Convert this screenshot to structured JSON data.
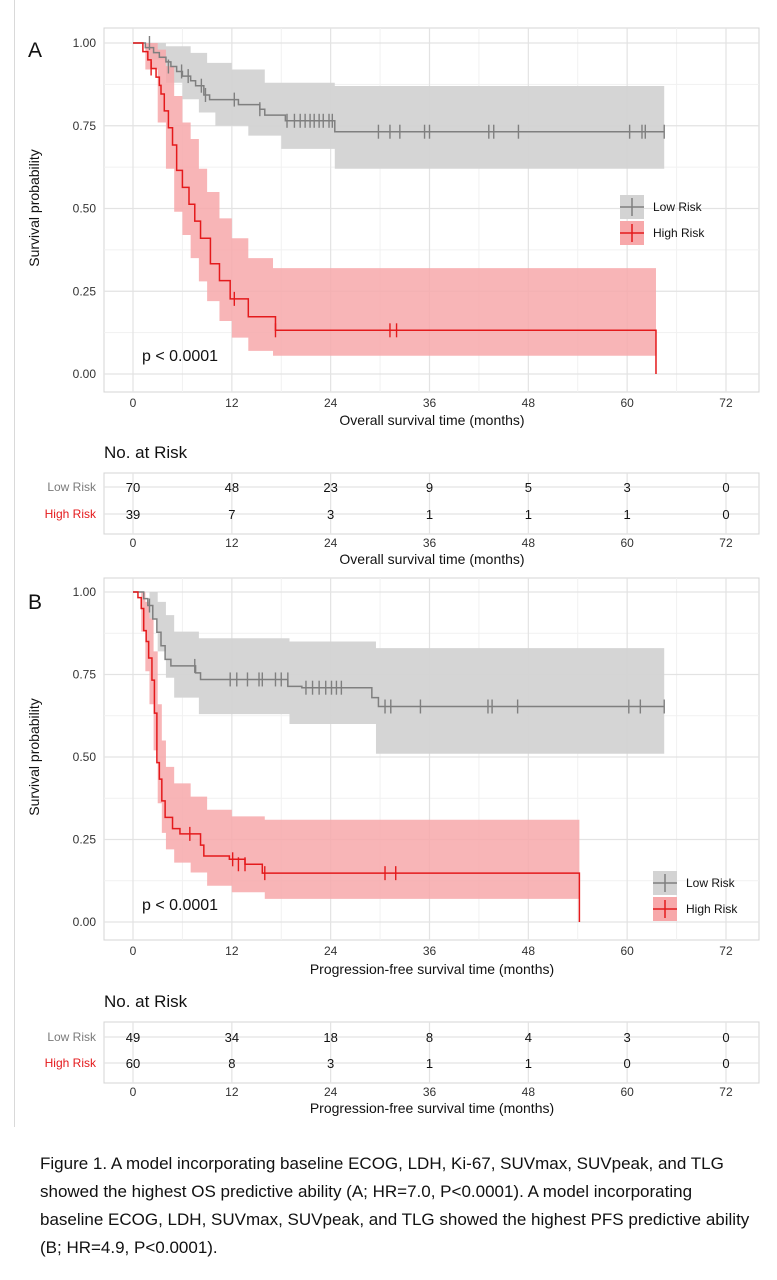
{
  "panels": [
    {
      "label": "A",
      "xlabel": "Overall survival time (months)",
      "ylabel": "Survival probability",
      "pvalue": "p < 0.0001",
      "xticks": [
        0,
        12,
        24,
        36,
        48,
        60,
        72
      ],
      "yticks": [
        "0.00",
        "0.25",
        "0.50",
        "0.75",
        "1.00"
      ],
      "risk_title": "No. at Risk",
      "legend": [
        "Low Risk",
        "High Risk"
      ],
      "risk_rows": [
        {
          "label": "Low Risk",
          "values": [
            70,
            48,
            23,
            9,
            5,
            3,
            0
          ]
        },
        {
          "label": "High Risk",
          "values": [
            39,
            7,
            3,
            1,
            1,
            1,
            0
          ]
        }
      ]
    },
    {
      "label": "B",
      "xlabel": "Progression-free survival time (months)",
      "ylabel": "Survival probability",
      "pvalue": "p < 0.0001",
      "xticks": [
        0,
        12,
        24,
        36,
        48,
        60,
        72
      ],
      "yticks": [
        "0.00",
        "0.25",
        "0.50",
        "0.75",
        "1.00"
      ],
      "risk_title": "No. at Risk",
      "legend": [
        "Low Risk",
        "High Risk"
      ],
      "risk_rows": [
        {
          "label": "Low Risk",
          "values": [
            49,
            34,
            18,
            8,
            4,
            3,
            0
          ]
        },
        {
          "label": "High Risk",
          "values": [
            60,
            8,
            3,
            1,
            1,
            0,
            0
          ]
        }
      ]
    }
  ],
  "colors": {
    "low_line": "#7f7f7f",
    "low_band": "#d3d3d3",
    "high_line": "#e41a1c",
    "high_band": "#f7a8aa",
    "high_label": "#e41a1c",
    "grid": "#e3e3e3",
    "frame": "#d4d4d4"
  },
  "chart_data": [
    {
      "type": "line",
      "title": "",
      "xlabel": "Overall survival time (months)",
      "ylabel": "Survival probability",
      "xlim": [
        0,
        72
      ],
      "ylim": [
        0,
        1
      ],
      "grid": true,
      "legend_position": "right",
      "series": [
        {
          "name": "Low Risk",
          "steps": [
            [
              0,
              1.0
            ],
            [
              1.5,
              0.986
            ],
            [
              2.5,
              0.971
            ],
            [
              3.2,
              0.957
            ],
            [
              4.0,
              0.943
            ],
            [
              4.6,
              0.929
            ],
            [
              5.3,
              0.914
            ],
            [
              6.0,
              0.9
            ],
            [
              7.0,
              0.886
            ],
            [
              7.6,
              0.871
            ],
            [
              8.6,
              0.843
            ],
            [
              9.3,
              0.829
            ],
            [
              12.8,
              0.814
            ],
            [
              15.4,
              0.8
            ],
            [
              16.0,
              0.782
            ],
            [
              18.5,
              0.765
            ],
            [
              24.5,
              0.732
            ]
          ],
          "end": 64.5,
          "upper": [
            [
              0,
              1.0
            ],
            [
              2.0,
              1.0
            ],
            [
              4.0,
              0.99
            ],
            [
              7.0,
              0.97
            ],
            [
              9.0,
              0.94
            ],
            [
              12.0,
              0.92
            ],
            [
              16.0,
              0.88
            ],
            [
              24.5,
              0.87
            ],
            [
              64.5,
              0.87
            ]
          ],
          "lower": [
            [
              0,
              1.0
            ],
            [
              2.0,
              0.95
            ],
            [
              4.0,
              0.88
            ],
            [
              6.0,
              0.83
            ],
            [
              8.0,
              0.79
            ],
            [
              10.0,
              0.75
            ],
            [
              14.0,
              0.72
            ],
            [
              18.0,
              0.68
            ],
            [
              24.5,
              0.62
            ],
            [
              64.5,
              0.62
            ]
          ],
          "censor": [
            [
              2.0,
              1.0
            ],
            [
              4.3,
              0.929
            ],
            [
              5.9,
              0.914
            ],
            [
              6.7,
              0.9
            ],
            [
              8.3,
              0.871
            ],
            [
              8.8,
              0.843
            ],
            [
              12.3,
              0.829
            ],
            [
              15.4,
              0.8
            ],
            [
              18.7,
              0.765
            ],
            [
              19.6,
              0.765
            ],
            [
              20.3,
              0.765
            ],
            [
              20.9,
              0.765
            ],
            [
              21.5,
              0.765
            ],
            [
              22.0,
              0.765
            ],
            [
              22.6,
              0.765
            ],
            [
              23.1,
              0.765
            ],
            [
              23.8,
              0.765
            ],
            [
              24.2,
              0.765
            ],
            [
              29.8,
              0.732
            ],
            [
              31.2,
              0.732
            ],
            [
              32.4,
              0.732
            ],
            [
              35.4,
              0.732
            ],
            [
              36.0,
              0.732
            ],
            [
              43.2,
              0.732
            ],
            [
              43.8,
              0.732
            ],
            [
              46.8,
              0.732
            ],
            [
              60.3,
              0.732
            ],
            [
              61.8,
              0.732
            ],
            [
              62.2,
              0.732
            ],
            [
              64.5,
              0.732
            ]
          ]
        },
        {
          "name": "High Risk",
          "steps": [
            [
              0,
              1.0
            ],
            [
              1.2,
              0.974
            ],
            [
              1.8,
              0.949
            ],
            [
              2.2,
              0.923
            ],
            [
              2.8,
              0.897
            ],
            [
              3.2,
              0.872
            ],
            [
              3.4,
              0.846
            ],
            [
              3.8,
              0.795
            ],
            [
              4.3,
              0.744
            ],
            [
              4.8,
              0.692
            ],
            [
              5.3,
              0.615
            ],
            [
              6.0,
              0.564
            ],
            [
              6.8,
              0.513
            ],
            [
              7.5,
              0.462
            ],
            [
              8.2,
              0.41
            ],
            [
              9.4,
              0.333
            ],
            [
              10.5,
              0.282
            ],
            [
              11.8,
              0.227
            ],
            [
              14.0,
              0.173
            ],
            [
              17.3,
              0.132
            ]
          ],
          "end": 63.5,
          "drop": 0.0,
          "upper": [
            [
              0,
              1.0
            ],
            [
              1.5,
              1.0
            ],
            [
              3.0,
              0.98
            ],
            [
              4.0,
              0.93
            ],
            [
              5.0,
              0.84
            ],
            [
              6.0,
              0.76
            ],
            [
              7.0,
              0.71
            ],
            [
              8.0,
              0.62
            ],
            [
              9.0,
              0.55
            ],
            [
              10.5,
              0.47
            ],
            [
              12.0,
              0.41
            ],
            [
              14.0,
              0.35
            ],
            [
              17.0,
              0.32
            ],
            [
              63.5,
              0.32
            ]
          ],
          "lower": [
            [
              0,
              1.0
            ],
            [
              1.5,
              0.92
            ],
            [
              3.0,
              0.76
            ],
            [
              4.0,
              0.62
            ],
            [
              5.0,
              0.49
            ],
            [
              6.0,
              0.42
            ],
            [
              7.0,
              0.35
            ],
            [
              8.0,
              0.28
            ],
            [
              9.0,
              0.22
            ],
            [
              10.5,
              0.16
            ],
            [
              12.0,
              0.11
            ],
            [
              14.0,
              0.07
            ],
            [
              17.0,
              0.055
            ],
            [
              63.5,
              0.055
            ]
          ],
          "censor": [
            [
              2.2,
              0.923
            ],
            [
              12.3,
              0.227
            ],
            [
              17.3,
              0.132
            ],
            [
              31.2,
              0.132
            ],
            [
              32.0,
              0.132
            ]
          ]
        }
      ]
    },
    {
      "type": "line",
      "title": "",
      "xlabel": "Progression-free survival time (months)",
      "ylabel": "Survival probability",
      "xlim": [
        0,
        72
      ],
      "ylim": [
        0,
        1
      ],
      "grid": true,
      "legend_position": "bottom-right",
      "series": [
        {
          "name": "Low Risk",
          "steps": [
            [
              0,
              1.0
            ],
            [
              1.3,
              0.98
            ],
            [
              1.8,
              0.959
            ],
            [
              2.4,
              0.918
            ],
            [
              2.9,
              0.878
            ],
            [
              3.4,
              0.837
            ],
            [
              3.9,
              0.796
            ],
            [
              4.6,
              0.776
            ],
            [
              7.6,
              0.755
            ],
            [
              8.2,
              0.735
            ],
            [
              18.8,
              0.714
            ],
            [
              20.5,
              0.71
            ],
            [
              29.0,
              0.68
            ],
            [
              29.8,
              0.653
            ]
          ],
          "end": 64.5,
          "upper": [
            [
              0,
              1.0
            ],
            [
              2.0,
              1.0
            ],
            [
              3.0,
              0.97
            ],
            [
              4.0,
              0.93
            ],
            [
              5.0,
              0.88
            ],
            [
              8.0,
              0.86
            ],
            [
              19.0,
              0.85
            ],
            [
              29.5,
              0.83
            ],
            [
              64.5,
              0.83
            ]
          ],
          "lower": [
            [
              0,
              1.0
            ],
            [
              2.0,
              0.92
            ],
            [
              3.0,
              0.82
            ],
            [
              4.0,
              0.74
            ],
            [
              5.0,
              0.68
            ],
            [
              8.0,
              0.63
            ],
            [
              19.0,
              0.6
            ],
            [
              29.5,
              0.51
            ],
            [
              64.5,
              0.51
            ]
          ],
          "censor": [
            [
              2.0,
              0.959
            ],
            [
              7.5,
              0.776
            ],
            [
              11.8,
              0.735
            ],
            [
              12.6,
              0.735
            ],
            [
              13.9,
              0.735
            ],
            [
              15.3,
              0.735
            ],
            [
              15.7,
              0.735
            ],
            [
              17.3,
              0.735
            ],
            [
              18.0,
              0.735
            ],
            [
              18.8,
              0.735
            ],
            [
              21.0,
              0.71
            ],
            [
              21.8,
              0.71
            ],
            [
              22.6,
              0.71
            ],
            [
              23.4,
              0.71
            ],
            [
              24.1,
              0.71
            ],
            [
              24.7,
              0.71
            ],
            [
              25.3,
              0.71
            ],
            [
              30.6,
              0.653
            ],
            [
              31.3,
              0.653
            ],
            [
              34.9,
              0.653
            ],
            [
              43.1,
              0.653
            ],
            [
              43.6,
              0.653
            ],
            [
              46.7,
              0.653
            ],
            [
              60.2,
              0.653
            ],
            [
              61.6,
              0.653
            ],
            [
              64.5,
              0.653
            ]
          ]
        },
        {
          "name": "High Risk",
          "steps": [
            [
              0,
              1.0
            ],
            [
              0.6,
              0.983
            ],
            [
              1.0,
              0.95
            ],
            [
              1.3,
              0.883
            ],
            [
              1.6,
              0.85
            ],
            [
              1.9,
              0.8
            ],
            [
              2.3,
              0.733
            ],
            [
              2.6,
              0.633
            ],
            [
              2.9,
              0.483
            ],
            [
              3.2,
              0.433
            ],
            [
              3.5,
              0.367
            ],
            [
              3.9,
              0.317
            ],
            [
              4.8,
              0.283
            ],
            [
              5.7,
              0.267
            ],
            [
              8.2,
              0.233
            ],
            [
              8.6,
              0.2
            ],
            [
              11.7,
              0.19
            ],
            [
              13.6,
              0.175
            ],
            [
              15.7,
              0.148
            ]
          ],
          "end": 54.2,
          "drop": 0.0,
          "upper": [
            [
              0,
              1.0
            ],
            [
              1.0,
              1.0
            ],
            [
              1.5,
              0.97
            ],
            [
              2.0,
              0.92
            ],
            [
              2.5,
              0.82
            ],
            [
              3.0,
              0.66
            ],
            [
              3.5,
              0.55
            ],
            [
              4.0,
              0.47
            ],
            [
              5.0,
              0.42
            ],
            [
              7.0,
              0.38
            ],
            [
              9.0,
              0.34
            ],
            [
              12.0,
              0.32
            ],
            [
              16.0,
              0.31
            ],
            [
              54.2,
              0.31
            ]
          ],
          "lower": [
            [
              0,
              1.0
            ],
            [
              1.0,
              0.88
            ],
            [
              1.5,
              0.76
            ],
            [
              2.0,
              0.66
            ],
            [
              2.5,
              0.52
            ],
            [
              3.0,
              0.36
            ],
            [
              3.5,
              0.27
            ],
            [
              4.0,
              0.22
            ],
            [
              5.0,
              0.18
            ],
            [
              7.0,
              0.15
            ],
            [
              9.0,
              0.11
            ],
            [
              12.0,
              0.09
            ],
            [
              16.0,
              0.07
            ],
            [
              54.2,
              0.07
            ]
          ],
          "censor": [
            [
              6.9,
              0.267
            ],
            [
              12.1,
              0.19
            ],
            [
              12.8,
              0.175
            ],
            [
              13.6,
              0.175
            ],
            [
              16.0,
              0.148
            ],
            [
              30.6,
              0.148
            ],
            [
              31.9,
              0.148
            ]
          ]
        }
      ]
    }
  ],
  "caption": "Figure 1. A model incorporating baseline ECOG, LDH, Ki-67, SUVmax, SUVpeak, and TLG showed the highest OS predictive ability (A; HR=7.0, P<0.0001). A model incorporating baseline ECOG, LDH, SUVmax, SUVpeak, and TLG showed the highest PFS predictive ability (B; HR=4.9, P<0.0001)."
}
